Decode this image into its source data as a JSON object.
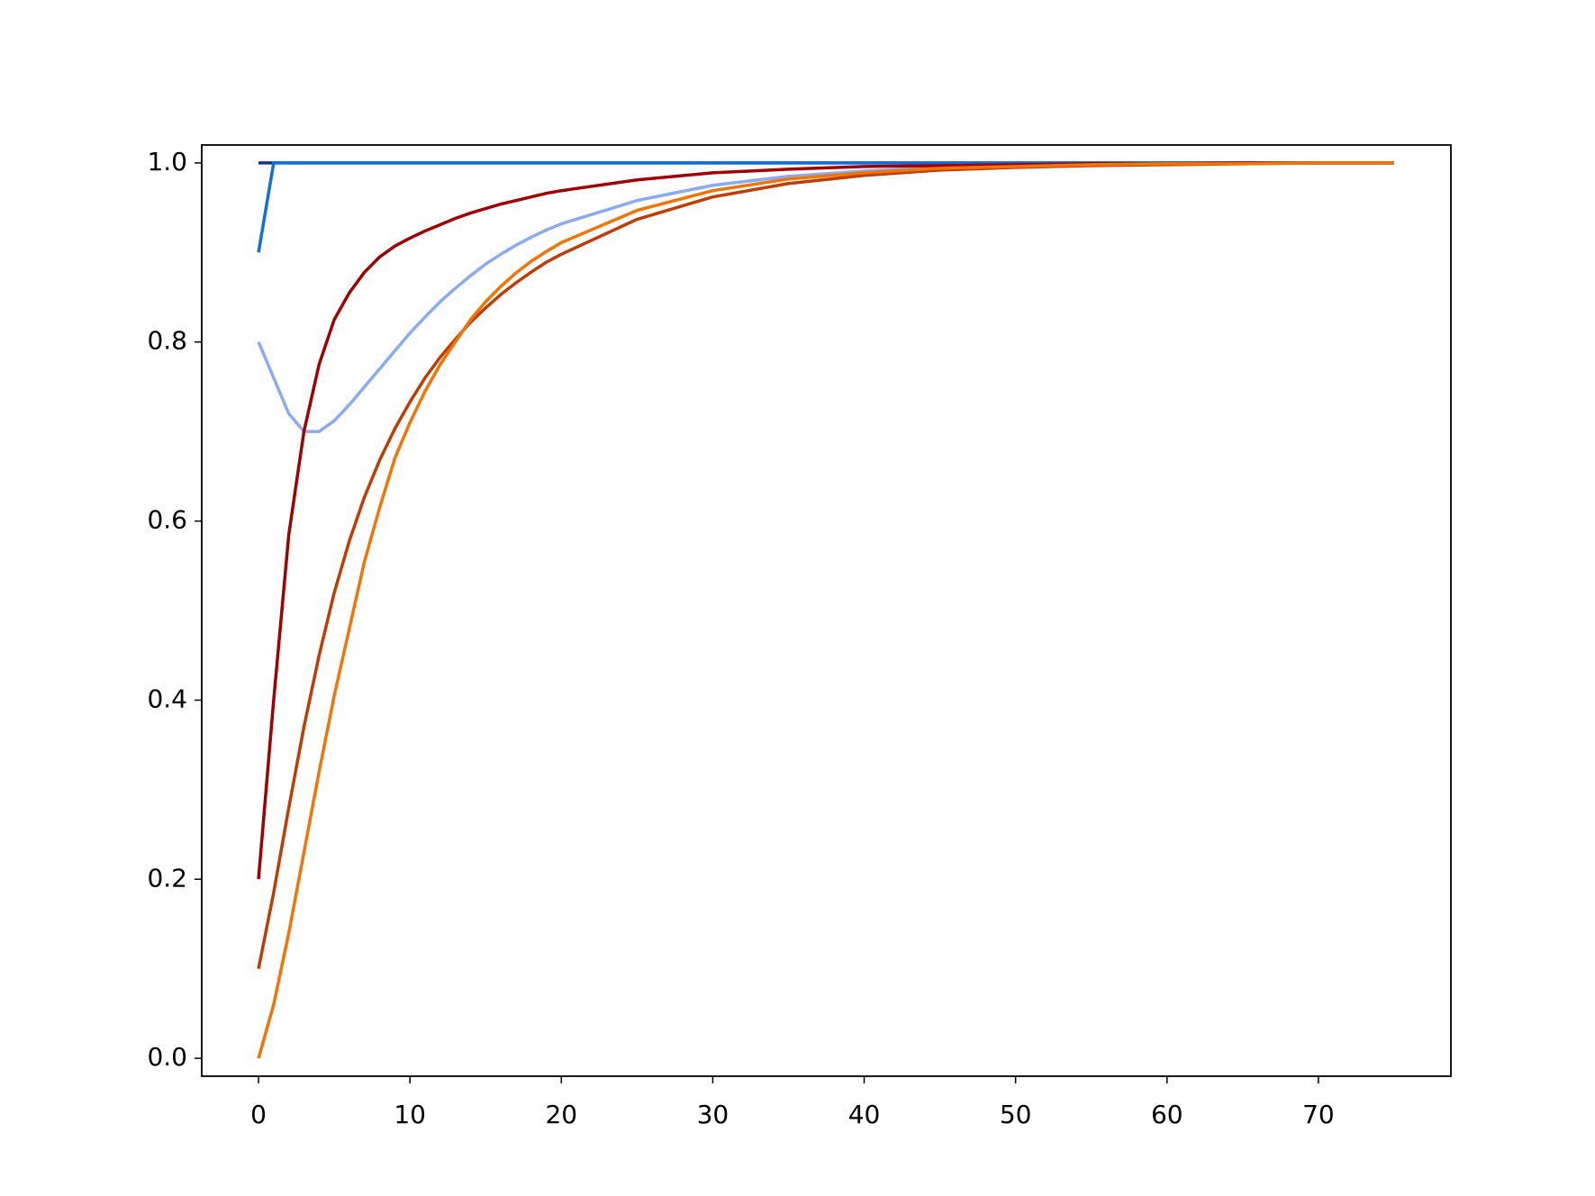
{
  "chart_data": {
    "type": "line",
    "x": [
      0,
      1,
      2,
      3,
      4,
      5,
      6,
      7,
      8,
      9,
      10,
      11,
      12,
      13,
      14,
      15,
      16,
      17,
      18,
      19,
      20,
      25,
      30,
      35,
      40,
      45,
      50,
      55,
      60,
      65,
      70,
      75
    ],
    "series": [
      {
        "color": "#1c2f8c",
        "values": [
          1,
          1,
          1,
          1,
          1,
          1,
          1,
          1,
          1,
          1,
          1,
          1,
          1,
          1,
          1,
          1,
          1,
          1,
          1,
          1,
          1,
          1,
          1,
          1,
          1,
          1,
          1,
          1,
          1,
          1,
          1,
          1
        ]
      },
      {
        "color": "#0f6fe0",
        "values": [
          0.9,
          1,
          1,
          1,
          1,
          1,
          1,
          1,
          1,
          1,
          1,
          1,
          1,
          1,
          1,
          1,
          1,
          1,
          1,
          1,
          1,
          1,
          1,
          1,
          1,
          1,
          1,
          1,
          1,
          1,
          1,
          1
        ]
      },
      {
        "color": "#8aabf0",
        "values": [
          0.8,
          0.76,
          0.72,
          0.7,
          0.7,
          0.712,
          0.73,
          0.75,
          0.77,
          0.79,
          0.81,
          0.828,
          0.845,
          0.86,
          0.874,
          0.887,
          0.898,
          0.908,
          0.917,
          0.925,
          0.932,
          0.958,
          0.975,
          0.985,
          0.991,
          0.995,
          0.997,
          0.998,
          0.999,
          1,
          1,
          1
        ]
      },
      {
        "color": "#a00000",
        "values": [
          0.2,
          0.4,
          0.585,
          0.7,
          0.775,
          0.825,
          0.855,
          0.878,
          0.895,
          0.907,
          0.916,
          0.924,
          0.931,
          0.938,
          0.944,
          0.949,
          0.954,
          0.958,
          0.962,
          0.966,
          0.969,
          0.981,
          0.989,
          0.993,
          0.996,
          0.997,
          0.998,
          0.999,
          0.999,
          1,
          1,
          1
        ]
      },
      {
        "color": "#c03c00",
        "values": [
          0.1,
          0.185,
          0.28,
          0.37,
          0.45,
          0.52,
          0.578,
          0.627,
          0.668,
          0.703,
          0.733,
          0.76,
          0.783,
          0.803,
          0.822,
          0.838,
          0.853,
          0.866,
          0.878,
          0.889,
          0.898,
          0.937,
          0.962,
          0.977,
          0.986,
          0.992,
          0.995,
          0.997,
          0.998,
          0.999,
          1,
          1
        ]
      },
      {
        "color": "#f27405",
        "values": [
          0,
          0.06,
          0.14,
          0.23,
          0.32,
          0.405,
          0.48,
          0.555,
          0.615,
          0.67,
          0.71,
          0.745,
          0.775,
          0.8,
          0.825,
          0.845,
          0.862,
          0.877,
          0.89,
          0.901,
          0.911,
          0.947,
          0.969,
          0.982,
          0.989,
          0.994,
          0.996,
          0.998,
          0.999,
          0.999,
          1,
          1
        ]
      }
    ],
    "xlim": [
      -3.75,
      78.75
    ],
    "ylim": [
      -0.02,
      1.02
    ],
    "xticks": [
      0,
      10,
      20,
      30,
      40,
      50,
      60,
      70
    ],
    "yticks": [
      {
        "value": 0,
        "label": "0.0"
      },
      0.2,
      0.4,
      0.6,
      0.8,
      {
        "value": 1,
        "label": "1.0"
      }
    ]
  }
}
